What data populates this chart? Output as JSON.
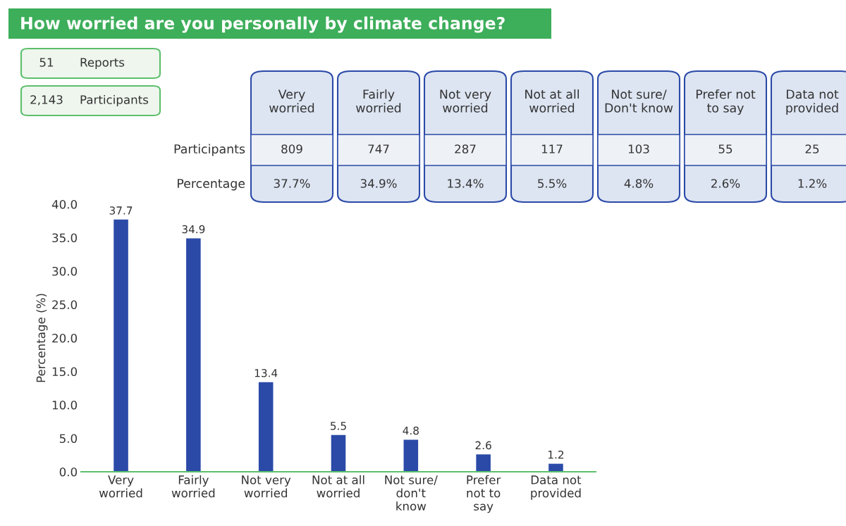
{
  "chart_data": {
    "type": "bar",
    "title": "How worried are you personally by climate change?",
    "categories": [
      "Very\nworried",
      "Fairly\nworried",
      "Not very\nworried",
      "Not at all\nworried",
      "Not sure/\ndon't\nknow",
      "Prefer\nnot to\nsay",
      "Data not\nprovided"
    ],
    "values": [
      37.7,
      34.9,
      13.4,
      5.5,
      4.8,
      2.6,
      1.2
    ],
    "color": "#2b4aa8",
    "ylabel": "Percentage (%)",
    "ylim": [
      0,
      40
    ],
    "yticks": [
      {
        "value": 0,
        "label": "0.0"
      },
      {
        "value": 5,
        "label": "5.0"
      },
      {
        "value": 10,
        "label": "10.0"
      },
      {
        "value": 15,
        "label": "15.0"
      },
      {
        "value": 20,
        "label": "20.0"
      },
      {
        "value": 25,
        "label": "25.0"
      },
      {
        "value": 30,
        "label": "30.0"
      },
      {
        "value": 35,
        "label": "35.0"
      },
      {
        "value": 40,
        "label": "40.0"
      }
    ],
    "data_labels": true,
    "grid": false,
    "annotations": [
      "51",
      "Reports",
      "2,143",
      "Participants",
      "Very\nworried",
      "Fairly\nworried",
      "Not very\nworried",
      "Not at all\nworried",
      "Not sure/\nDon't know",
      "Prefer not\nto say",
      "Data not\nprovided",
      "Participants",
      "809",
      "747",
      "287",
      "117",
      "103",
      "55",
      "25",
      "Percentage",
      "37.7%",
      "34.9%",
      "13.4%",
      "5.5%",
      "4.8%",
      "2.6%",
      "1.2%"
    ]
  }
}
